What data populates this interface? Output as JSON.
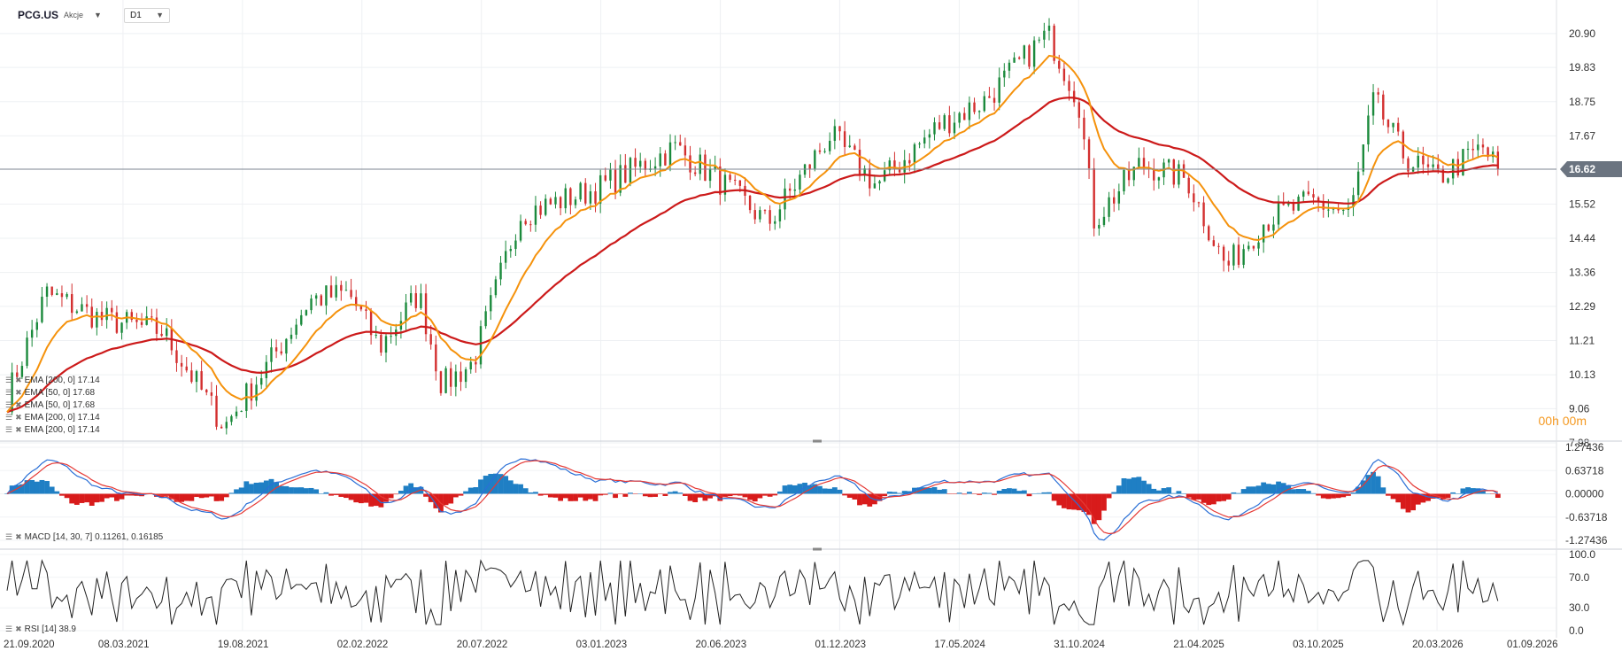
{
  "header": {
    "symbol": "PCG.US",
    "security_type": "Akcje",
    "timeframe": "D1"
  },
  "timer": {
    "value": "00h 00m"
  },
  "legends": {
    "price": [
      "EMA [200, 0] 17.14",
      "EMA [50, 0] 17.68",
      "EMA [50, 0] 17.68",
      "EMA [200, 0] 17.14",
      "EMA [200, 0] 17.14"
    ],
    "macd": "MACD [14, 30, 7] 0.11261, 0.16185",
    "rsi": "RSI [14] 38.9"
  },
  "colors": {
    "ema_fast": "#f5920c",
    "ema_slow": "#cc1a1a",
    "bull": "#1b8a3c",
    "bear": "#d32f2f",
    "macd_pos": "#1f7fc4",
    "macd_neg": "#d81b1b",
    "rsi": "#222222",
    "current_price_label": "#6b7480"
  },
  "chart_data": [
    {
      "panel": "price",
      "type": "candlestick",
      "y_ticks": [
        20.9,
        19.83,
        18.75,
        17.67,
        16.62,
        15.52,
        14.44,
        13.36,
        12.29,
        11.21,
        10.13,
        9.06,
        7.98
      ],
      "ylim": [
        7.98,
        21.4
      ],
      "current_price": 16.62,
      "x_labels": [
        "21.09.2020",
        "08.03.2021",
        "19.08.2021",
        "02.02.2022",
        "20.07.2022",
        "03.01.2023",
        "20.06.2023",
        "01.12.2023",
        "17.05.2024",
        "31.10.2024",
        "21.04.2025",
        "03.10.2025",
        "20.03.2026",
        "01.09.2026"
      ],
      "close_path": [
        {
          "t": 0,
          "v": 9.4
        },
        {
          "t": 0.025,
          "v": 12.7
        },
        {
          "t": 0.06,
          "v": 11.9
        },
        {
          "t": 0.1,
          "v": 11.5
        },
        {
          "t": 0.14,
          "v": 8.5
        },
        {
          "t": 0.17,
          "v": 10.6
        },
        {
          "t": 0.195,
          "v": 12.5
        },
        {
          "t": 0.22,
          "v": 12.7
        },
        {
          "t": 0.24,
          "v": 11.0
        },
        {
          "t": 0.265,
          "v": 12.7
        },
        {
          "t": 0.28,
          "v": 9.8
        },
        {
          "t": 0.3,
          "v": 10.5
        },
        {
          "t": 0.33,
          "v": 15.2
        },
        {
          "t": 0.38,
          "v": 16.0
        },
        {
          "t": 0.43,
          "v": 17.3
        },
        {
          "t": 0.46,
          "v": 16.2
        },
        {
          "t": 0.49,
          "v": 14.9
        },
        {
          "t": 0.53,
          "v": 17.7
        },
        {
          "t": 0.56,
          "v": 16.1
        },
        {
          "t": 0.6,
          "v": 18.0
        },
        {
          "t": 0.63,
          "v": 18.8
        },
        {
          "t": 0.67,
          "v": 20.9
        },
        {
          "t": 0.69,
          "v": 18.8
        },
        {
          "t": 0.7,
          "v": 15.0
        },
        {
          "t": 0.73,
          "v": 16.8
        },
        {
          "t": 0.76,
          "v": 16.3
        },
        {
          "t": 0.785,
          "v": 13.5
        },
        {
          "t": 0.81,
          "v": 15.0
        },
        {
          "t": 0.84,
          "v": 15.6
        },
        {
          "t": 0.865,
          "v": 15.2
        },
        {
          "t": 0.88,
          "v": 18.8
        },
        {
          "t": 0.9,
          "v": 17.0
        },
        {
          "t": 0.92,
          "v": 16.3
        },
        {
          "t": 0.95,
          "v": 17.3
        },
        {
          "t": 0.96,
          "v": 16.62
        }
      ]
    },
    {
      "panel": "macd",
      "type": "line+histogram",
      "y_ticks": [
        1.27436,
        0.63718,
        0.0,
        -0.63718,
        -1.27436
      ],
      "ylim": [
        -1.27436,
        1.27436
      ],
      "last_values": {
        "macd": 0.11261,
        "signal": 0.16185
      }
    },
    {
      "panel": "rsi",
      "type": "line",
      "y_ticks": [
        100.0,
        70.0,
        30.0,
        0.0
      ],
      "ylim": [
        0,
        100
      ],
      "last_value": 38.9
    }
  ]
}
